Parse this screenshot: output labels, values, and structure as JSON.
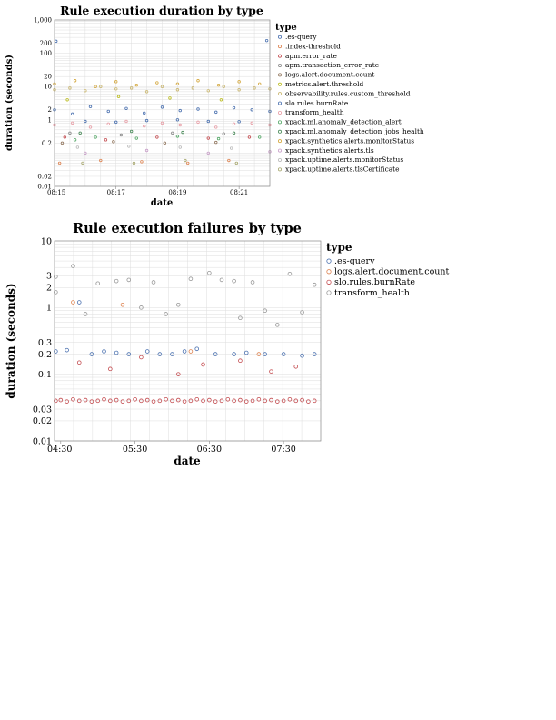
{
  "chart_data": [
    {
      "type": "scatter",
      "title": "Rule execution duration by type",
      "xlabel": "date",
      "ylabel": "duration (seconds)",
      "yscale": "log",
      "ylim": [
        0.01,
        1000
      ],
      "y_ticks": [
        0.01,
        0.02,
        0.2,
        1,
        2,
        10,
        20,
        100,
        200,
        1000
      ],
      "y_tick_labels": [
        "0.01",
        "0.02",
        "0.2",
        "1",
        "2",
        "10",
        "20",
        "100",
        "200",
        "1,000"
      ],
      "x_ticks": [
        "08:15",
        "08:17",
        "08:19",
        "08:21"
      ],
      "xlim": [
        "08:15",
        "08:22"
      ],
      "grid": true,
      "legend_title": "type",
      "legend_placement": "right",
      "series": [
        {
          "name": ".es-query",
          "color": "#4c72b0",
          "values": [
            [
              3,
              230
            ],
            [
              60,
              0.9
            ],
            [
              120,
              0.85
            ],
            [
              180,
              0.95
            ],
            [
              240,
              1.0
            ],
            [
              300,
              0.9
            ],
            [
              360,
              0.88
            ],
            [
              414,
              240
            ]
          ]
        },
        {
          "name": ".index-threshold",
          "color": "#dd8452",
          "values": [
            [
              10,
              0.05
            ],
            [
              90,
              0.06
            ],
            [
              170,
              0.055
            ],
            [
              260,
              0.05
            ],
            [
              340,
              0.06
            ]
          ]
        },
        {
          "name": "apm.error_rate",
          "color": "#c44e52",
          "values": [
            [
              20,
              0.3
            ],
            [
              100,
              0.25
            ],
            [
              200,
              0.3
            ],
            [
              300,
              0.28
            ],
            [
              380,
              0.3
            ]
          ]
        },
        {
          "name": "apm.transaction_error_rate",
          "color": "#8c8c8c",
          "values": [
            [
              30,
              0.4
            ],
            [
              130,
              0.35
            ],
            [
              230,
              0.4
            ],
            [
              330,
              0.38
            ]
          ]
        },
        {
          "name": "logs.alert.document.count",
          "color": "#937860",
          "values": [
            [
              15,
              0.2
            ],
            [
              115,
              0.22
            ],
            [
              215,
              0.2
            ],
            [
              315,
              0.21
            ]
          ]
        },
        {
          "name": "metrics.alert.threshold",
          "color": "#bcbd22",
          "values": [
            [
              25,
              4
            ],
            [
              125,
              5
            ],
            [
              225,
              4.5
            ],
            [
              325,
              4
            ]
          ]
        },
        {
          "name": "observability.rules.custom_threshold",
          "color": "#ccb974",
          "values": [
            [
              0,
              8
            ],
            [
              30,
              9
            ],
            [
              60,
              7.5
            ],
            [
              90,
              10
            ],
            [
              120,
              8.5
            ],
            [
              150,
              9
            ],
            [
              180,
              7
            ],
            [
              210,
              10
            ],
            [
              240,
              8
            ],
            [
              270,
              9
            ],
            [
              300,
              7.5
            ],
            [
              330,
              10
            ],
            [
              360,
              8
            ],
            [
              390,
              9
            ],
            [
              420,
              8.5
            ]
          ]
        },
        {
          "name": "slo.rules.burnRate",
          "color": "#4c72b0",
          "values": [
            [
              0,
              2.0
            ],
            [
              35,
              1.5
            ],
            [
              70,
              2.5
            ],
            [
              105,
              1.8
            ],
            [
              140,
              2.2
            ],
            [
              175,
              1.6
            ],
            [
              210,
              2.4
            ],
            [
              245,
              1.9
            ],
            [
              280,
              2.1
            ],
            [
              315,
              1.7
            ],
            [
              350,
              2.3
            ],
            [
              385,
              2.0
            ],
            [
              420,
              1.8
            ]
          ]
        },
        {
          "name": "transform_health",
          "color": "#e8a0a8",
          "values": [
            [
              0,
              0.7
            ],
            [
              35,
              0.8
            ],
            [
              70,
              0.6
            ],
            [
              105,
              0.75
            ],
            [
              140,
              0.9
            ],
            [
              175,
              0.65
            ],
            [
              210,
              0.8
            ],
            [
              245,
              0.7
            ],
            [
              280,
              0.85
            ],
            [
              315,
              0.6
            ],
            [
              350,
              0.75
            ],
            [
              385,
              0.8
            ],
            [
              420,
              0.7
            ]
          ]
        },
        {
          "name": "xpack.ml.anomaly_detection_alert",
          "color": "#55a868",
          "values": [
            [
              40,
              0.25
            ],
            [
              80,
              0.3
            ],
            [
              160,
              0.28
            ],
            [
              240,
              0.32
            ],
            [
              320,
              0.27
            ],
            [
              400,
              0.3
            ]
          ]
        },
        {
          "name": "xpack.ml.anomaly_detection_jobs_health",
          "color": "#4c8c5c",
          "values": [
            [
              50,
              0.4
            ],
            [
              150,
              0.45
            ],
            [
              250,
              0.42
            ],
            [
              350,
              0.4
            ]
          ]
        },
        {
          "name": "xpack.synthetics.alerts.monitorStatus",
          "color": "#d4a840",
          "values": [
            [
              0,
              12
            ],
            [
              40,
              15
            ],
            [
              80,
              10
            ],
            [
              120,
              14
            ],
            [
              160,
              11
            ],
            [
              200,
              13
            ],
            [
              240,
              12
            ],
            [
              280,
              15
            ],
            [
              320,
              11
            ],
            [
              360,
              14
            ],
            [
              400,
              12
            ]
          ]
        },
        {
          "name": "xpack.synthetics.alerts.tls",
          "color": "#c9a0c9",
          "values": [
            [
              60,
              0.1
            ],
            [
              180,
              0.12
            ],
            [
              300,
              0.1
            ],
            [
              420,
              0.11
            ]
          ]
        },
        {
          "name": "xpack.uptime.alerts.monitorStatus",
          "color": "#bbbbbb",
          "values": [
            [
              45,
              0.15
            ],
            [
              145,
              0.16
            ],
            [
              245,
              0.15
            ],
            [
              345,
              0.14
            ]
          ]
        },
        {
          "name": "xpack.uptime.alerts.tlsCertificate",
          "color": "#a8a870",
          "values": [
            [
              55,
              0.05
            ],
            [
              155,
              0.05
            ],
            [
              255,
              0.06
            ],
            [
              355,
              0.05
            ]
          ]
        }
      ]
    },
    {
      "type": "scatter",
      "title": "Rule execution failures by type",
      "xlabel": "date",
      "ylabel": "duration (seconds)",
      "yscale": "log",
      "ylim": [
        0.01,
        10
      ],
      "y_ticks": [
        0.01,
        0.02,
        0.03,
        0.1,
        0.2,
        0.3,
        1,
        2,
        3,
        10
      ],
      "y_tick_labels": [
        "0.01",
        "0.02",
        "0.03",
        "0.1",
        "0.2",
        "0.3",
        "1",
        "2",
        "3",
        "10"
      ],
      "x_ticks": [
        "04:30",
        "05:30",
        "06:30",
        "07:30"
      ],
      "xlim": [
        "04:25",
        "08:00"
      ],
      "grid": true,
      "legend_title": "type",
      "legend_placement": "right",
      "series": [
        {
          "name": ".es-query",
          "color": "#4c72b0",
          "values": [
            [
              "04:26",
              0.22
            ],
            [
              "04:35",
              0.23
            ],
            [
              "04:45",
              1.2
            ],
            [
              "04:55",
              0.2
            ],
            [
              "05:05",
              0.22
            ],
            [
              "05:15",
              0.21
            ],
            [
              "05:25",
              0.2
            ],
            [
              "05:40",
              0.22
            ],
            [
              "05:50",
              0.2
            ],
            [
              "06:00",
              0.2
            ],
            [
              "06:10",
              0.22
            ],
            [
              "06:20",
              0.24
            ],
            [
              "06:35",
              0.2
            ],
            [
              "06:50",
              0.2
            ],
            [
              "07:00",
              0.21
            ],
            [
              "07:15",
              0.2
            ],
            [
              "07:30",
              0.2
            ],
            [
              "07:45",
              0.19
            ],
            [
              "07:55",
              0.2
            ]
          ]
        },
        {
          "name": "logs.alert.document.count",
          "color": "#dd8452",
          "values": [
            [
              "04:40",
              1.2
            ],
            [
              "05:20",
              1.1
            ],
            [
              "06:15",
              0.22
            ],
            [
              "07:10",
              0.2
            ]
          ]
        },
        {
          "name": "slo.rules.burnRate",
          "color": "#c44e52",
          "values": [
            [
              "04:26",
              0.04
            ],
            [
              "04:30",
              0.041
            ],
            [
              "04:35",
              0.039
            ],
            [
              "04:40",
              0.042
            ],
            [
              "04:45",
              0.04
            ],
            [
              "04:50",
              0.041
            ],
            [
              "04:55",
              0.039
            ],
            [
              "05:00",
              0.04
            ],
            [
              "05:05",
              0.042
            ],
            [
              "05:10",
              0.04
            ],
            [
              "05:15",
              0.041
            ],
            [
              "05:20",
              0.039
            ],
            [
              "05:25",
              0.04
            ],
            [
              "05:30",
              0.042
            ],
            [
              "05:35",
              0.04
            ],
            [
              "05:40",
              0.041
            ],
            [
              "05:45",
              0.039
            ],
            [
              "05:50",
              0.04
            ],
            [
              "05:55",
              0.042
            ],
            [
              "06:00",
              0.04
            ],
            [
              "06:05",
              0.041
            ],
            [
              "06:10",
              0.039
            ],
            [
              "06:15",
              0.04
            ],
            [
              "06:20",
              0.042
            ],
            [
              "06:25",
              0.04
            ],
            [
              "06:30",
              0.041
            ],
            [
              "06:35",
              0.039
            ],
            [
              "06:40",
              0.04
            ],
            [
              "06:45",
              0.042
            ],
            [
              "06:50",
              0.04
            ],
            [
              "06:55",
              0.041
            ],
            [
              "07:00",
              0.039
            ],
            [
              "07:05",
              0.04
            ],
            [
              "07:10",
              0.042
            ],
            [
              "07:15",
              0.04
            ],
            [
              "07:20",
              0.041
            ],
            [
              "07:25",
              0.039
            ],
            [
              "07:30",
              0.04
            ],
            [
              "07:35",
              0.042
            ],
            [
              "07:40",
              0.04
            ],
            [
              "07:45",
              0.041
            ],
            [
              "07:50",
              0.039
            ],
            [
              "07:55",
              0.04
            ],
            [
              "04:45",
              0.15
            ],
            [
              "05:10",
              0.12
            ],
            [
              "05:35",
              0.18
            ],
            [
              "06:05",
              0.1
            ],
            [
              "06:25",
              0.14
            ],
            [
              "06:55",
              0.16
            ],
            [
              "07:20",
              0.11
            ],
            [
              "07:40",
              0.13
            ]
          ]
        },
        {
          "name": "transform_health",
          "color": "#999999",
          "values": [
            [
              "04:26",
              2.9
            ],
            [
              "04:26",
              1.7
            ],
            [
              "04:40",
              4.2
            ],
            [
              "04:50",
              0.8
            ],
            [
              "05:00",
              2.3
            ],
            [
              "05:15",
              2.5
            ],
            [
              "05:25",
              2.6
            ],
            [
              "05:35",
              1.0
            ],
            [
              "05:45",
              2.4
            ],
            [
              "05:55",
              0.8
            ],
            [
              "06:05",
              1.1
            ],
            [
              "06:15",
              2.7
            ],
            [
              "06:30",
              3.3
            ],
            [
              "06:40",
              2.6
            ],
            [
              "06:50",
              2.5
            ],
            [
              "06:55",
              0.7
            ],
            [
              "07:05",
              2.4
            ],
            [
              "07:15",
              0.9
            ],
            [
              "07:25",
              0.55
            ],
            [
              "07:35",
              3.2
            ],
            [
              "07:45",
              0.85
            ],
            [
              "07:55",
              2.2
            ]
          ]
        }
      ]
    }
  ]
}
